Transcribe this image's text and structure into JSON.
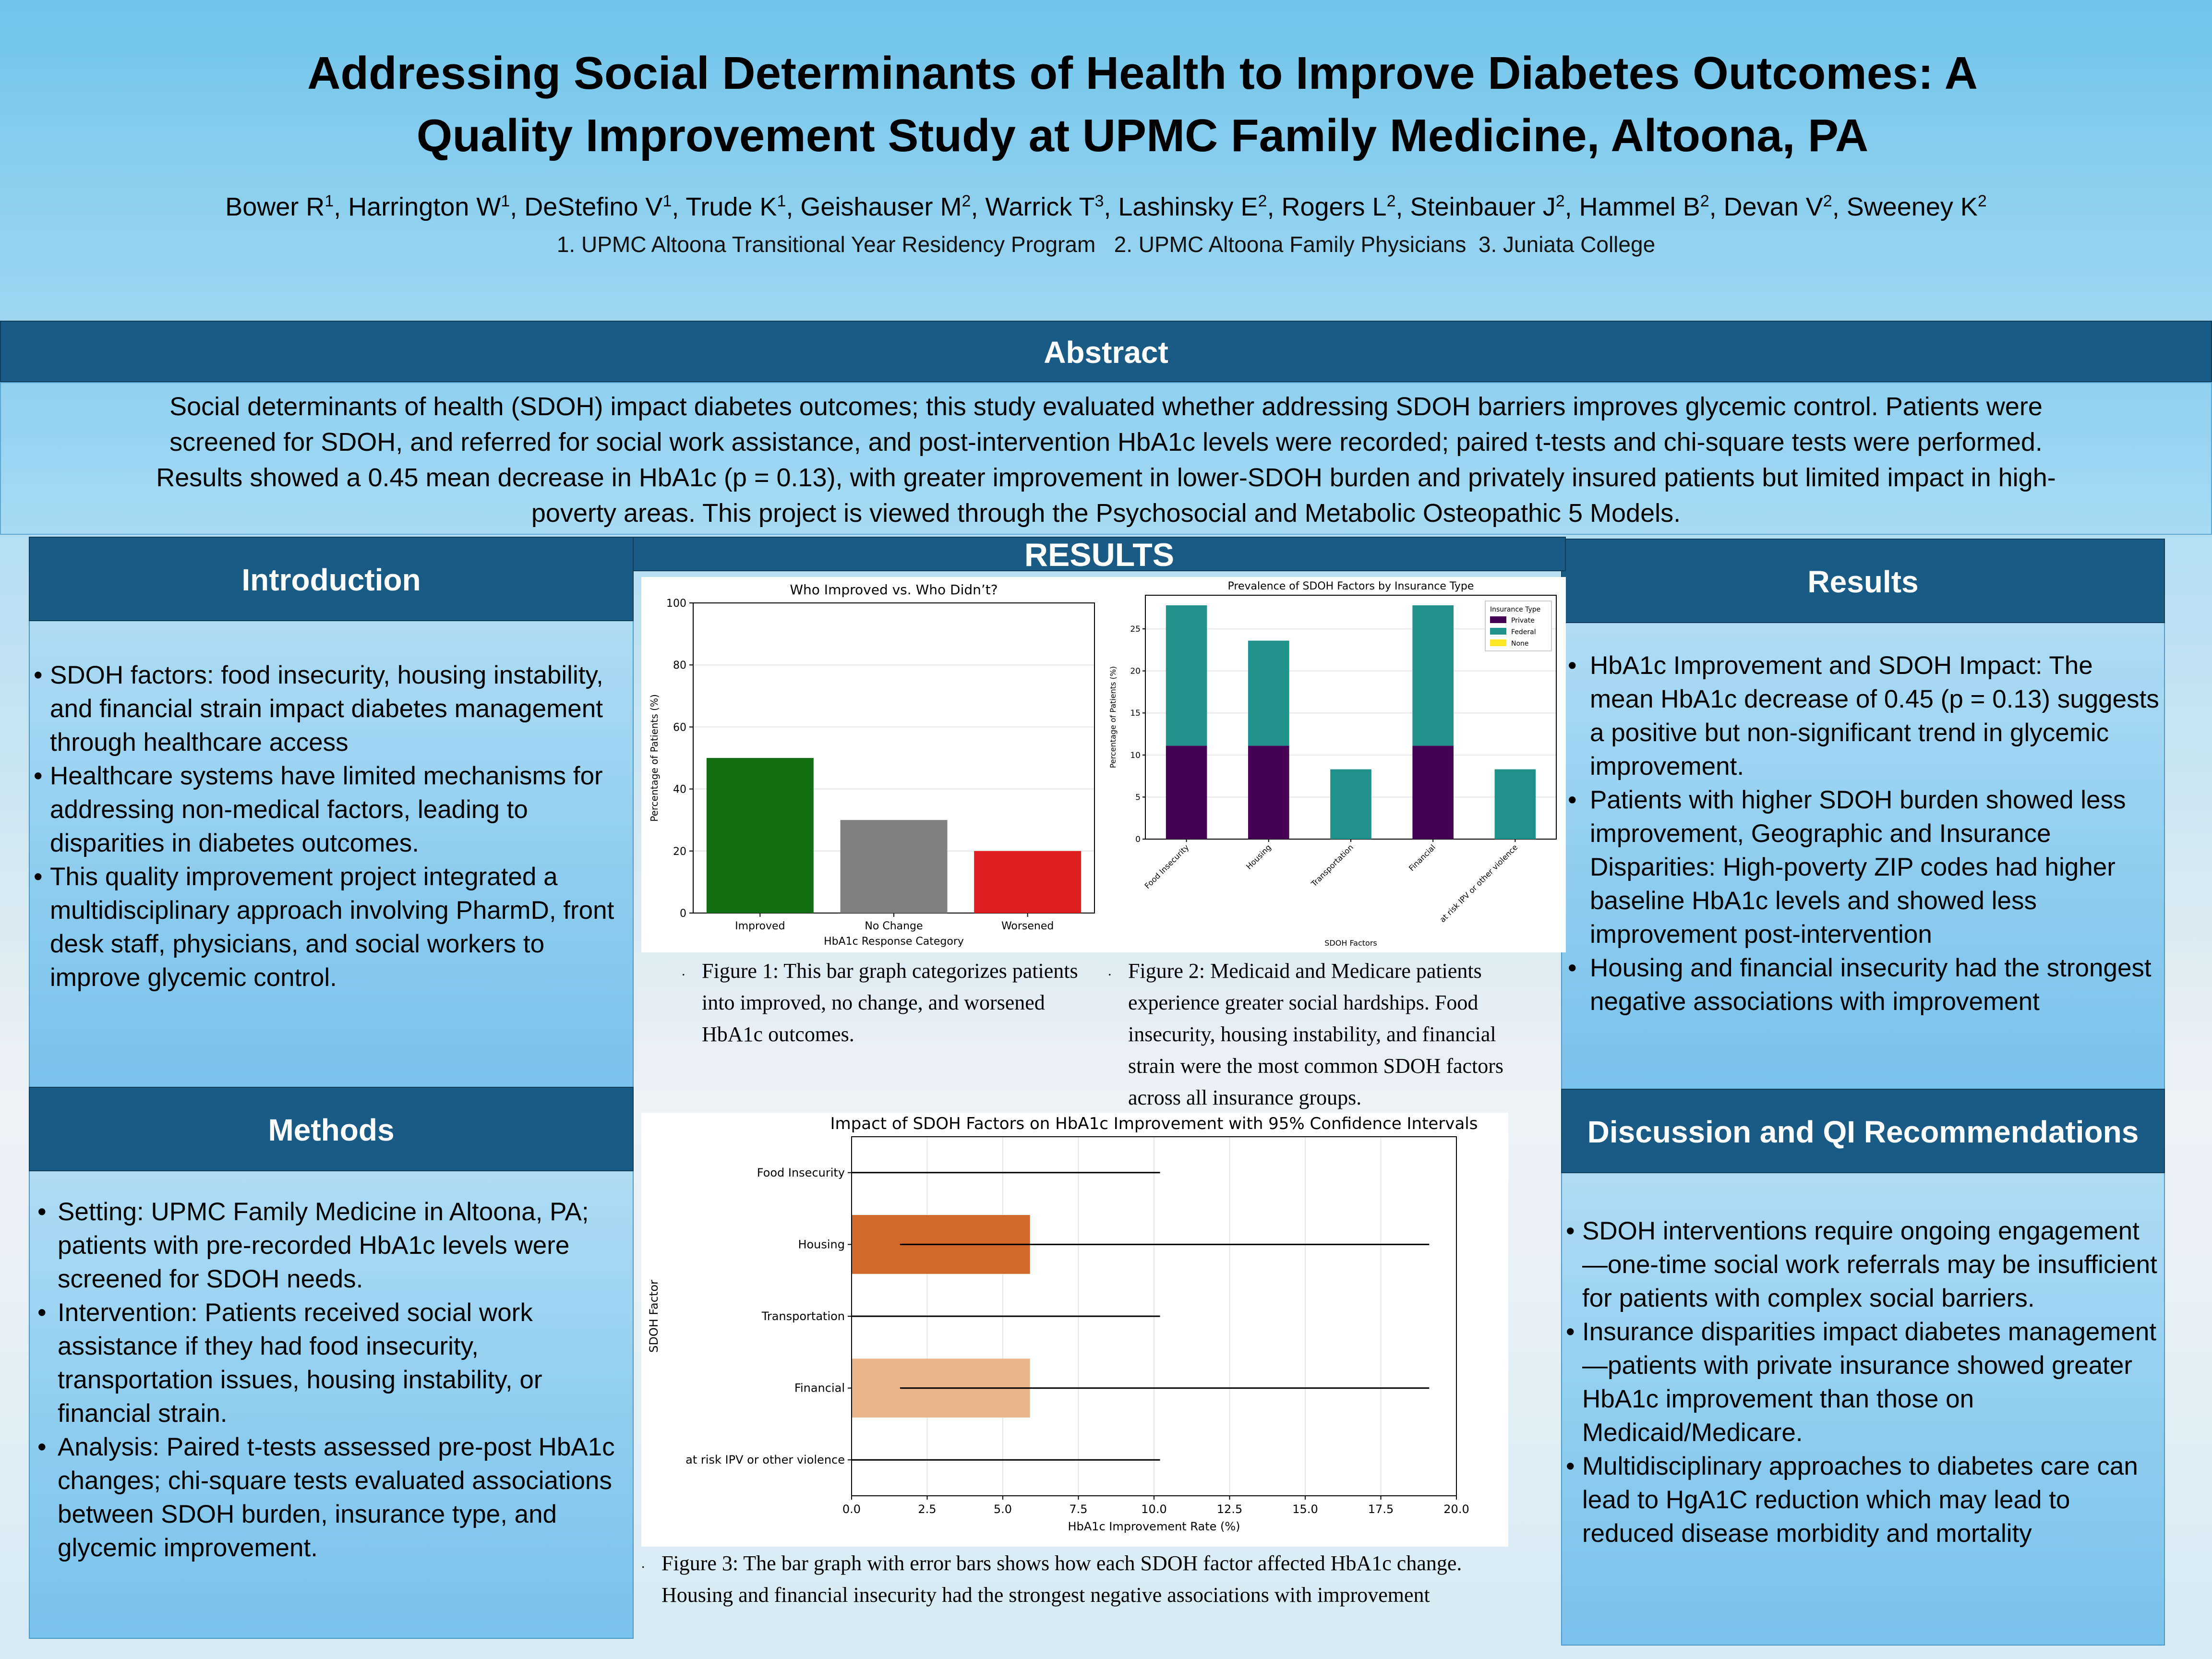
{
  "header": {
    "title_line1": "Addressing Social Determinants of Health to Improve Diabetes Outcomes: A",
    "title_line2": "Quality Improvement Study at UPMC Family Medicine, Altoona, PA",
    "authors": [
      {
        "name": "Bower R",
        "aff": "1"
      },
      {
        "name": "Harrington W",
        "aff": "1"
      },
      {
        "name": "DeStefino V",
        "aff": "1"
      },
      {
        "name": "Trude K",
        "aff": "1"
      },
      {
        "name": "Geishauser M",
        "aff": "2"
      },
      {
        "name": "Warrick T",
        "aff": "3"
      },
      {
        "name": "Lashinsky E",
        "aff": "2"
      },
      {
        "name": "Rogers L",
        "aff": "2"
      },
      {
        "name": "Steinbauer J",
        "aff": "2"
      },
      {
        "name": "Hammel B",
        "aff": "2"
      },
      {
        "name": "Devan V",
        "aff": "2"
      },
      {
        "name": "Sweeney K",
        "aff": "2"
      }
    ],
    "affiliations": "1. UPMC Altoona Transitional Year Residency Program   2. UPMC Altoona Family Physicians  3. Juniata College"
  },
  "abstract": {
    "heading": "Abstract",
    "line1": "Social determinants of health (SDOH) impact diabetes outcomes; this study evaluated whether addressing SDOH barriers improves glycemic control. Patients were",
    "line2": "screened for SDOH, and referred for social work assistance, and post-intervention HbA1c levels were recorded; paired t-tests and chi-square tests were performed.",
    "line3": "Results showed a 0.45 mean decrease in HbA1c (p = 0.13), with greater improvement in lower-SDOH burden and privately insured patients but limited impact in high-",
    "line4": "poverty areas. This project is viewed through the Psychosocial and Metabolic Osteopathic 5 Models."
  },
  "introduction": {
    "heading": "Introduction",
    "items": [
      "SDOH factors: food insecurity, housing instability, and financial strain impact diabetes management through healthcare access",
      "Healthcare systems have limited mechanisms for addressing non-medical factors, leading to disparities in diabetes outcomes.",
      "This quality improvement project integrated a multidisciplinary approach involving PharmD, front desk staff, physicians, and social workers to improve glycemic control."
    ]
  },
  "methods": {
    "heading": "Methods",
    "items": [
      "Setting: UPMC Family Medicine in Altoona, PA; patients with pre-recorded HbA1c levels were screened for SDOH needs.",
      "Intervention: Patients received social work assistance if they had food insecurity, transportation issues, housing instability, or financial strain.",
      "Analysis: Paired t-tests assessed pre-post HbA1c changes; chi-square tests evaluated associations between SDOH burden, insurance type, and glycemic improvement."
    ]
  },
  "results_banner": "RESULTS",
  "results": {
    "heading": "Results",
    "items": [
      "HbA1c Improvement and SDOH Impact: The mean HbA1c decrease of 0.45 (p = 0.13) suggests a positive but non-significant trend in glycemic improvement.",
      "Patients with higher SDOH burden showed less improvement, Geographic and Insurance Disparities: High-poverty ZIP codes had higher baseline HbA1c levels and showed less improvement post-intervention",
      "Housing and financial insecurity had the strongest negative associations with improvement"
    ]
  },
  "discussion": {
    "heading": "Discussion and QI Recommendations",
    "items": [
      "SDOH interventions require ongoing engagement—one-time social work referrals may be insufficient for patients with complex social barriers.",
      "Insurance disparities impact diabetes management—patients with private insurance showed greater HbA1c improvement than those on Medicaid/Medicare.",
      "Multidisciplinary approaches to diabetes care can lead to HgA1C reduction which may lead to reduced disease morbidity and mortality"
    ]
  },
  "captions": {
    "fig1": "Figure 1: This bar graph categorizes patients into improved, no change, and worsened HbA1c outcomes.",
    "fig2": "Figure 2: Medicaid and Medicare patients experience greater social hardships. Food insecurity, housing instability, and financial strain were the most common SDOH factors across all insurance groups.",
    "fig3_line1": "Figure 3: The bar graph with error bars shows how each SDOH factor affected HbA1c change.",
    "fig3_line2": "Housing and financial insecurity had the strongest negative associations with improvement"
  },
  "chart_data": [
    {
      "id": "fig1",
      "type": "bar",
      "title": "Who Improved vs. Who Didn’t?",
      "xlabel": "HbA1c Response Category",
      "ylabel": "Percentage of Patients (%)",
      "categories": [
        "Improved",
        "No Change",
        "Worsened"
      ],
      "values": [
        50,
        30,
        20
      ],
      "colors": [
        "#127012",
        "#808080",
        "#e02020"
      ],
      "ylim": [
        0,
        100
      ],
      "yticks": [
        0,
        20,
        40,
        60,
        80,
        100
      ],
      "grid": true
    },
    {
      "id": "fig2",
      "type": "bar",
      "stacked": true,
      "title": "Prevalence of SDOH Factors by Insurance Type",
      "xlabel": "SDOH Factors",
      "ylabel": "Percentage of Patients (%)",
      "categories": [
        "Food Insecurity",
        "Housing",
        "Transportation",
        "Financial",
        "at risk IPV or other violence"
      ],
      "series": [
        {
          "name": "Private",
          "color": "#440154",
          "values": [
            11.1,
            11.1,
            0,
            11.1,
            0
          ]
        },
        {
          "name": "Federal",
          "color": "#21918c",
          "values": [
            16.7,
            12.5,
            8.3,
            16.7,
            8.3
          ]
        },
        {
          "name": "None",
          "color": "#fde725",
          "values": [
            0,
            0,
            0,
            0,
            0
          ]
        }
      ],
      "legend_title": "Insurance Type",
      "legend_position": "top-right",
      "ylim": [
        0,
        29
      ],
      "yticks": [
        0,
        5,
        10,
        15,
        20,
        25
      ],
      "grid": true
    },
    {
      "id": "fig3",
      "type": "bar",
      "orientation": "horizontal",
      "title": "Impact of SDOH Factors on HbA1c Improvement with 95% Confidence Intervals",
      "xlabel": "HbA1c Improvement Rate (%)",
      "ylabel": "SDOH Factor",
      "categories": [
        "Food Insecurity",
        "Housing",
        "Transportation",
        "Financial",
        "at risk IPV or other violence"
      ],
      "values": [
        0,
        5.9,
        0,
        5.9,
        0
      ],
      "ci_low": [
        0,
        1.6,
        0,
        1.6,
        0
      ],
      "ci_high": [
        10.2,
        19.1,
        10.2,
        19.1,
        10.2
      ],
      "colors": [
        "#c0501a",
        "#d2692a",
        "#d0804a",
        "#eab58a",
        "#e8a070"
      ],
      "xlim": [
        0,
        20
      ],
      "xticks": [
        0.0,
        2.5,
        5.0,
        7.5,
        10.0,
        12.5,
        15.0,
        17.5,
        20.0
      ],
      "grid": true
    }
  ]
}
